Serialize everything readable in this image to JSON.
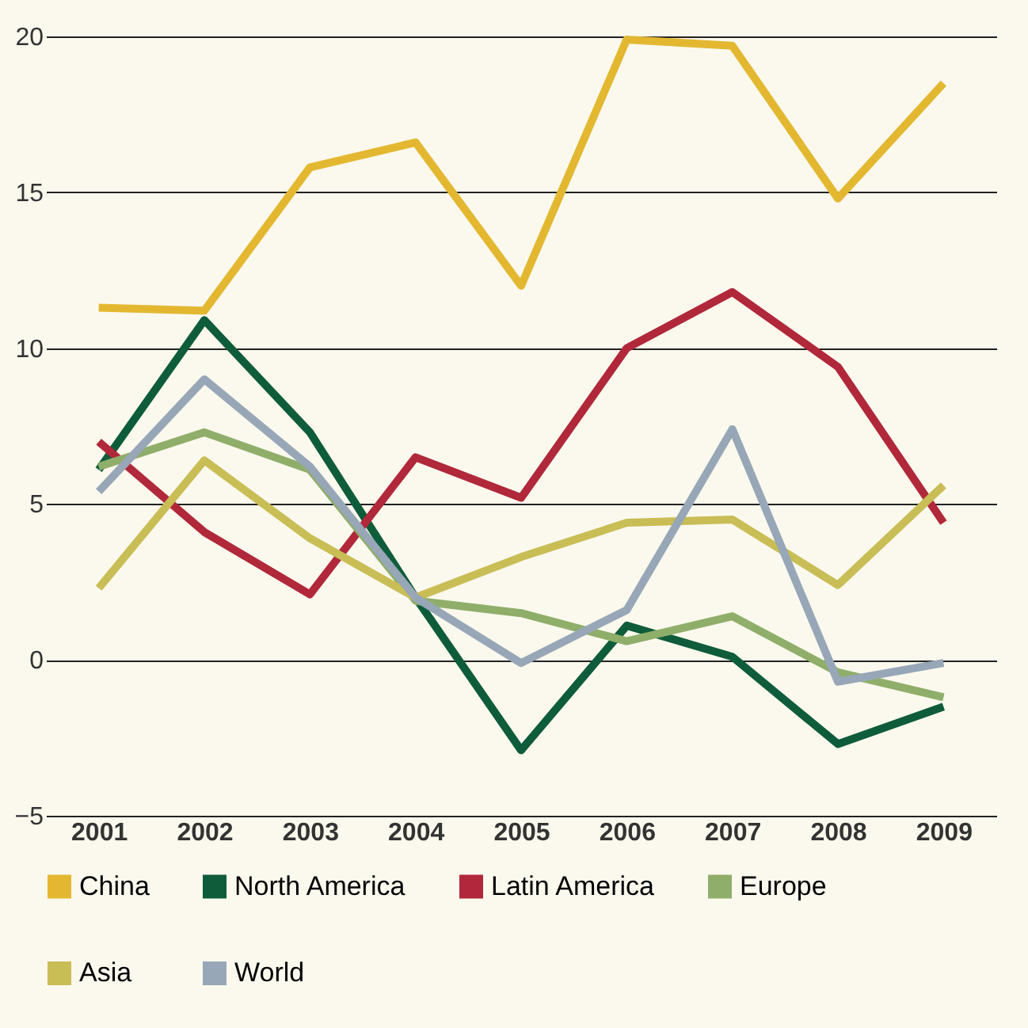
{
  "chart_data": {
    "type": "line",
    "categories": [
      "2001",
      "2002",
      "2003",
      "2004",
      "2005",
      "2006",
      "2007",
      "2008",
      "2009"
    ],
    "series": [
      {
        "name": "China",
        "color": "#e3b830",
        "values": [
          11.3,
          11.2,
          15.8,
          16.6,
          12.0,
          19.9,
          19.7,
          14.8,
          18.5
        ]
      },
      {
        "name": "North America",
        "color": "#0f5c3a",
        "values": [
          6.1,
          10.9,
          7.3,
          2.0,
          -2.9,
          1.1,
          0.1,
          -2.7,
          -1.5
        ]
      },
      {
        "name": "Latin America",
        "color": "#b0283a",
        "values": [
          7.0,
          4.1,
          2.1,
          6.5,
          5.2,
          10.0,
          11.8,
          9.4,
          4.4
        ]
      },
      {
        "name": "Europe",
        "color": "#8fae6a",
        "values": [
          6.2,
          7.3,
          6.1,
          1.9,
          1.5,
          0.6,
          1.4,
          -0.4,
          -1.2
        ]
      },
      {
        "name": "Asia",
        "color": "#c9bd55",
        "values": [
          2.3,
          6.4,
          3.9,
          2.0,
          3.3,
          4.4,
          4.5,
          2.4,
          5.6
        ]
      },
      {
        "name": "World",
        "color": "#97a7b7",
        "values": [
          5.4,
          9.0,
          6.2,
          2.0,
          -0.1,
          1.6,
          7.4,
          -0.7,
          -0.1
        ]
      }
    ],
    "ylim": [
      -5,
      20
    ],
    "yticks": [
      -5,
      0,
      5,
      10,
      15,
      20
    ],
    "grid": "y",
    "legend": "bottom",
    "marker": "none",
    "line_style": "solid"
  }
}
